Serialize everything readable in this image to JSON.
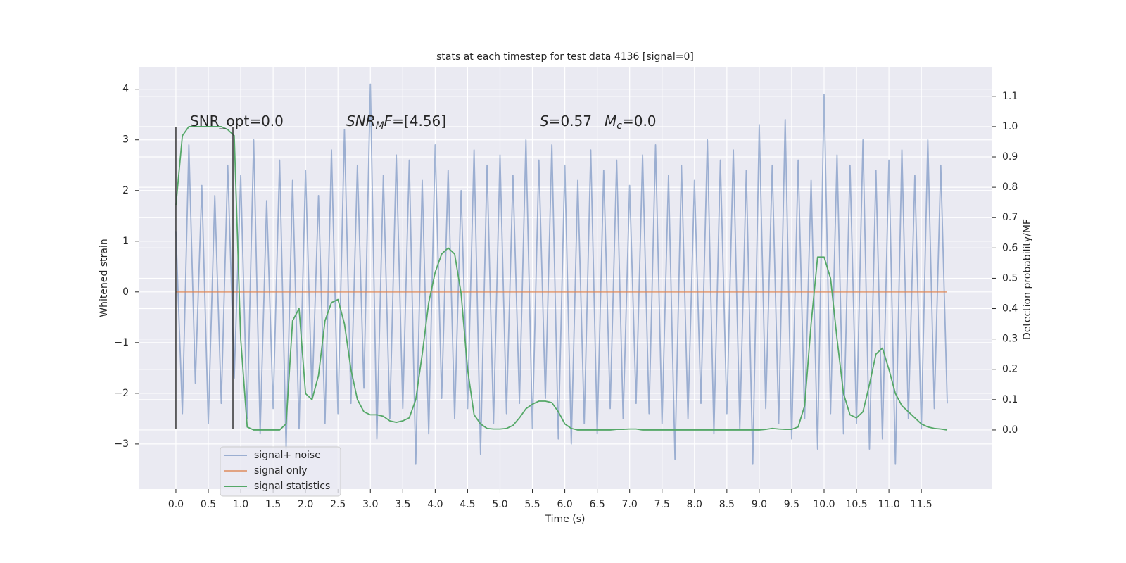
{
  "chart_data": {
    "type": "line",
    "title": "stats at each timestep for test data 4136 [signal=0]",
    "xlabel": "Time (s)",
    "ylabel": "Whitened strain",
    "y2label": "Detection probability/MF",
    "xlim": [
      -0.575,
      12.595
    ],
    "ylim": [
      -3.89,
      4.44
    ],
    "y2lim": [
      -0.195,
      1.197
    ],
    "xticks": [
      {
        "value": 0,
        "label": "0.0"
      },
      {
        "value": 0.5,
        "label": "0.5"
      },
      {
        "value": 1,
        "label": "1.0"
      },
      {
        "value": 1.5,
        "label": "1.5"
      },
      {
        "value": 2,
        "label": "2.0"
      },
      {
        "value": 2.5,
        "label": "2.5"
      },
      {
        "value": 3,
        "label": "3.0"
      },
      {
        "value": 3.5,
        "label": "3.5"
      },
      {
        "value": 4,
        "label": "4.0"
      },
      {
        "value": 4.5,
        "label": "4.5"
      },
      {
        "value": 5,
        "label": "5.0"
      },
      {
        "value": 5.5,
        "label": "5.5"
      },
      {
        "value": 6,
        "label": "6.0"
      },
      {
        "value": 6.5,
        "label": "6.5"
      },
      {
        "value": 7,
        "label": "7.0"
      },
      {
        "value": 7.5,
        "label": "7.5"
      },
      {
        "value": 8,
        "label": "8.0"
      },
      {
        "value": 8.5,
        "label": "8.5"
      },
      {
        "value": 9,
        "label": "9.0"
      },
      {
        "value": 9.5,
        "label": "9.5"
      },
      {
        "value": 10,
        "label": "10.0"
      },
      {
        "value": 10.5,
        "label": "10.5"
      },
      {
        "value": 11,
        "label": "11.0"
      },
      {
        "value": 11.5,
        "label": "11.5"
      }
    ],
    "yticks": [
      {
        "value": -3,
        "label": "−3"
      },
      {
        "value": -2,
        "label": "−2"
      },
      {
        "value": -1,
        "label": "−1"
      },
      0,
      1,
      2,
      3,
      4
    ],
    "y2ticks": [
      {
        "value": 0,
        "label": "0.0"
      },
      {
        "value": 0.1,
        "label": "0.1"
      },
      {
        "value": 0.2,
        "label": "0.2"
      },
      {
        "value": 0.3,
        "label": "0.3"
      },
      {
        "value": 0.4,
        "label": "0.4"
      },
      {
        "value": 0.5,
        "label": "0.5"
      },
      {
        "value": 0.6,
        "label": "0.6"
      },
      {
        "value": 0.7,
        "label": "0.7"
      },
      {
        "value": 0.8,
        "label": "0.8"
      },
      {
        "value": 0.9,
        "label": "0.9"
      },
      {
        "value": 1,
        "label": "1.0"
      },
      {
        "value": 1.1,
        "label": "1.1"
      }
    ],
    "grid": true,
    "legend": "lower left",
    "x": [
      0.0,
      0.1,
      0.2,
      0.3,
      0.4,
      0.5,
      0.6,
      0.7,
      0.8,
      0.9,
      1.0,
      1.1,
      1.2,
      1.3,
      1.4,
      1.5,
      1.6,
      1.7,
      1.8,
      1.9,
      2.0,
      2.1,
      2.2,
      2.3,
      2.4,
      2.5,
      2.6,
      2.7,
      2.8,
      2.9,
      3.0,
      3.1,
      3.2,
      3.3,
      3.4,
      3.5,
      3.6,
      3.7,
      3.8,
      3.9,
      4.0,
      4.1,
      4.2,
      4.3,
      4.4,
      4.5,
      4.6,
      4.7,
      4.8,
      4.9,
      5.0,
      5.1,
      5.2,
      5.3,
      5.4,
      5.5,
      5.6,
      5.7,
      5.8,
      5.9,
      6.0,
      6.1,
      6.2,
      6.3,
      6.4,
      6.5,
      6.6,
      6.7,
      6.8,
      6.9,
      7.0,
      7.1,
      7.2,
      7.3,
      7.4,
      7.5,
      7.6,
      7.7,
      7.8,
      7.9,
      8.0,
      8.1,
      8.2,
      8.3,
      8.4,
      8.5,
      8.6,
      8.7,
      8.8,
      8.9,
      9.0,
      9.1,
      9.2,
      9.3,
      9.4,
      9.5,
      9.6,
      9.7,
      9.8,
      9.9,
      10.0,
      10.1,
      10.2,
      10.3,
      10.4,
      10.5,
      10.6,
      10.7,
      10.8,
      10.9,
      11.0,
      11.1,
      11.2,
      11.3,
      11.4,
      11.5,
      11.6,
      11.7,
      11.8,
      11.9
    ],
    "series": [
      {
        "name": "signal+ noise",
        "color": "#4c72b0",
        "opacity": 0.5,
        "axis": "y",
        "values": [
          1.2,
          -2.4,
          2.9,
          -1.8,
          2.1,
          -2.6,
          1.9,
          -2.2,
          2.5,
          -1.7,
          2.3,
          -2.5,
          3.0,
          -2.8,
          1.8,
          -2.3,
          2.6,
          -3.1,
          2.2,
          -2.7,
          2.4,
          -2.1,
          1.9,
          -2.6,
          2.8,
          -2.4,
          3.2,
          -2.2,
          2.5,
          -1.9,
          4.1,
          -2.9,
          2.3,
          -2.5,
          2.7,
          -2.3,
          2.6,
          -3.4,
          2.2,
          -2.8,
          2.9,
          -2.1,
          2.4,
          -2.5,
          2.0,
          -2.3,
          2.8,
          -3.2,
          2.5,
          -2.6,
          2.7,
          -2.4,
          2.3,
          -2.2,
          3.0,
          -2.7,
          2.6,
          -2.1,
          2.9,
          -2.9,
          2.5,
          -3.0,
          2.2,
          -2.6,
          2.8,
          -2.8,
          2.4,
          -2.3,
          2.6,
          -2.5,
          2.1,
          -2.2,
          2.7,
          -2.4,
          2.9,
          -2.6,
          2.3,
          -3.3,
          2.5,
          -2.5,
          2.2,
          -2.2,
          3.0,
          -2.8,
          2.6,
          -2.4,
          2.8,
          -2.7,
          2.4,
          -3.4,
          3.3,
          -2.3,
          2.5,
          -2.6,
          3.4,
          -2.9,
          2.6,
          -2.5,
          2.2,
          -3.1,
          3.9,
          -2.4,
          2.7,
          -2.8,
          2.5,
          -2.6,
          3.0,
          -3.1,
          2.4,
          -2.9,
          2.6,
          -3.4,
          2.8,
          -2.5,
          2.3,
          -2.7,
          3.0,
          -2.3,
          2.5,
          -2.2
        ]
      },
      {
        "name": "signal only",
        "color": "#dd8452",
        "opacity": 0.7,
        "axis": "y",
        "values": [
          0,
          0,
          0,
          0,
          0,
          0,
          0,
          0,
          0,
          0,
          0,
          0,
          0,
          0,
          0,
          0,
          0,
          0,
          0,
          0,
          0,
          0,
          0,
          0,
          0,
          0,
          0,
          0,
          0,
          0,
          0,
          0,
          0,
          0,
          0,
          0,
          0,
          0,
          0,
          0,
          0,
          0,
          0,
          0,
          0,
          0,
          0,
          0,
          0,
          0,
          0,
          0,
          0,
          0,
          0,
          0,
          0,
          0,
          0,
          0,
          0,
          0,
          0,
          0,
          0,
          0,
          0,
          0,
          0,
          0,
          0,
          0,
          0,
          0,
          0,
          0,
          0,
          0,
          0,
          0,
          0,
          0,
          0,
          0,
          0,
          0,
          0,
          0,
          0,
          0,
          0,
          0,
          0,
          0,
          0,
          0,
          0,
          0,
          0,
          0,
          0,
          0,
          0,
          0,
          0,
          0,
          0,
          0,
          0,
          0,
          0,
          0,
          0,
          0,
          0,
          0,
          0,
          0,
          0,
          0
        ]
      },
      {
        "name": "signal statistics",
        "color": "#55a868",
        "opacity": 1,
        "axis": "y2",
        "values": [
          0.74,
          0.97,
          1.0,
          1.0,
          1.0,
          1.0,
          1.0,
          1.0,
          0.99,
          0.97,
          0.3,
          0.01,
          0.0,
          0.0,
          0.0,
          0.0,
          0.0,
          0.02,
          0.36,
          0.4,
          0.12,
          0.1,
          0.18,
          0.36,
          0.42,
          0.43,
          0.35,
          0.2,
          0.1,
          0.06,
          0.05,
          0.05,
          0.045,
          0.03,
          0.025,
          0.03,
          0.04,
          0.1,
          0.25,
          0.42,
          0.52,
          0.58,
          0.6,
          0.58,
          0.45,
          0.2,
          0.05,
          0.02,
          0.005,
          0.003,
          0.003,
          0.005,
          0.015,
          0.04,
          0.07,
          0.085,
          0.095,
          0.095,
          0.09,
          0.06,
          0.02,
          0.005,
          0.0,
          0.0,
          0.0,
          0.0,
          0.0,
          0.0,
          0.002,
          0.002,
          0.003,
          0.003,
          0.0,
          0.0,
          0.0,
          0.0,
          0.0,
          0.0,
          0.0,
          0.0,
          0,
          0,
          0,
          0,
          0,
          0,
          0,
          0,
          0,
          0,
          0.0,
          0.002,
          0.005,
          0.003,
          0.002,
          0.002,
          0.01,
          0.08,
          0.35,
          0.57,
          0.57,
          0.5,
          0.3,
          0.12,
          0.05,
          0.04,
          0.06,
          0.15,
          0.25,
          0.27,
          0.2,
          0.12,
          0.08,
          0.06,
          0.04,
          0.02,
          0.01,
          0.005,
          0.003,
          0.0
        ]
      }
    ],
    "vlines": {
      "x": [
        0,
        0.88
      ],
      "ymin": -2.7,
      "ymax": 3.25,
      "color": "#333333"
    },
    "annotations": [
      [
        {
          "text": "SNR_opt=0.0"
        }
      ],
      [
        {
          "text": "SNR",
          "italic": true
        },
        {
          "text": "M",
          "italic": true,
          "sub": true
        },
        {
          "text": "F",
          "italic": true
        },
        {
          "text": "=[4.56]"
        }
      ],
      [
        {
          "text": "S",
          "italic": true
        },
        {
          "text": "=0.57"
        }
      ],
      [
        {
          "text": "M",
          "italic": true
        },
        {
          "text": "c",
          "italic": true,
          "sub": true
        },
        {
          "text": "=0.0"
        }
      ]
    ]
  }
}
